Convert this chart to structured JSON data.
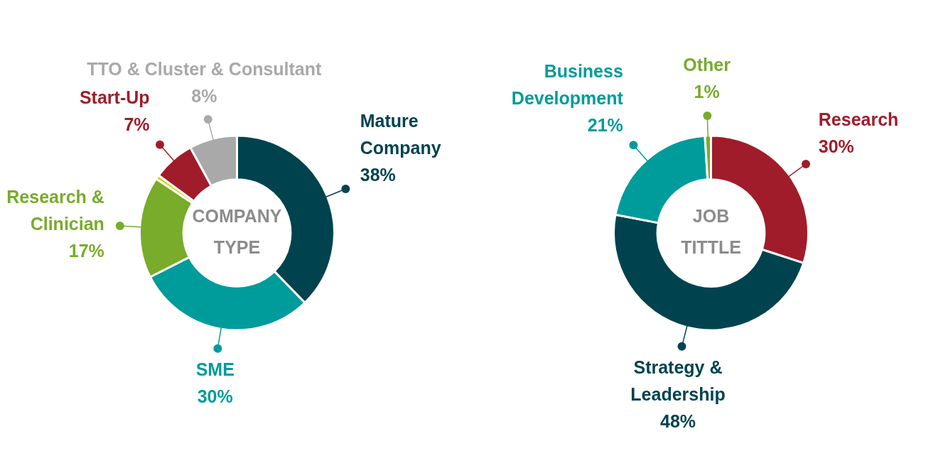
{
  "chart_data": [
    {
      "type": "donut",
      "title": "COMPANY TYPE",
      "categories": [
        "Mature Company",
        "SME",
        "Research & Clinician",
        null,
        "Start-Up",
        "TTO & Cluster & Consultant"
      ],
      "values": [
        38,
        30,
        17,
        0.7,
        7,
        8
      ],
      "value_labels": [
        "38%",
        "30%",
        "17%",
        null,
        "7%",
        "8%"
      ],
      "colors": [
        "#00434f",
        "#009b9b",
        "#78ac2a",
        "#d4d400",
        "#a01c2a",
        "#a9a9a9"
      ]
    },
    {
      "type": "donut",
      "title": "JOB TITTLE",
      "categories": [
        "Research",
        "Strategy & Leadership",
        "Business Development",
        "Other"
      ],
      "values": [
        30,
        48,
        21,
        1
      ],
      "value_labels": [
        "30%",
        "48%",
        "21%",
        "1%"
      ],
      "colors": [
        "#a01c2a",
        "#00434f",
        "#009b9b",
        "#78ac2a"
      ]
    }
  ]
}
